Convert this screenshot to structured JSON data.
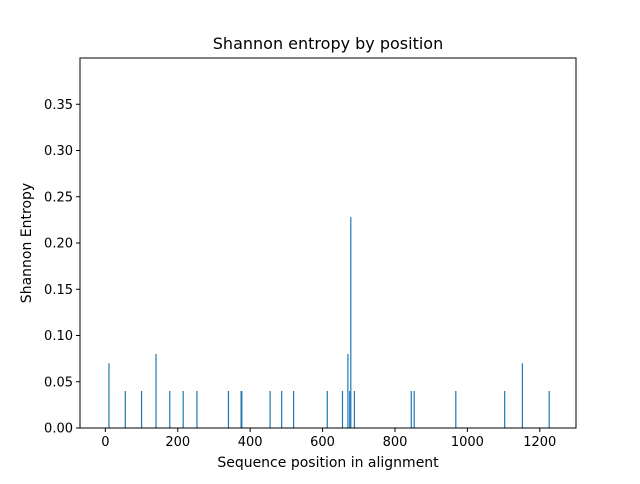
{
  "chart_data": {
    "type": "bar",
    "title": "Shannon entropy by position",
    "xlabel": "Sequence position in alignment",
    "ylabel": "Shannon Entropy",
    "xlim": [
      -70,
      1300
    ],
    "ylim": [
      0,
      0.4
    ],
    "x_ticks": [
      0,
      200,
      400,
      600,
      800,
      1000,
      1200
    ],
    "x_tick_labels": [
      "0",
      "200",
      "400",
      "600",
      "800",
      "1000",
      "1200"
    ],
    "y_ticks": [
      0,
      0.05,
      0.1,
      0.15,
      0.2,
      0.25,
      0.3,
      0.35
    ],
    "y_tick_labels": [
      "0.00",
      "0.05",
      "0.10",
      "0.15",
      "0.20",
      "0.25",
      "0.30",
      "0.35"
    ],
    "bar_color": "#1f77b4",
    "grid": false,
    "legend": "none",
    "series": [
      {
        "x": [
          10,
          55,
          100,
          140,
          178,
          215,
          253,
          340,
          375,
          377,
          455,
          487,
          520,
          613,
          655,
          670,
          675,
          678,
          688,
          845,
          853,
          968,
          1103,
          1152,
          1226
        ],
        "values": [
          0.07,
          0.04,
          0.04,
          0.08,
          0.04,
          0.04,
          0.04,
          0.04,
          0.04,
          0.04,
          0.04,
          0.04,
          0.04,
          0.04,
          0.04,
          0.08,
          0.04,
          0.228,
          0.04,
          0.04,
          0.04,
          0.04,
          0.04,
          0.07,
          0.04
        ]
      }
    ]
  }
}
